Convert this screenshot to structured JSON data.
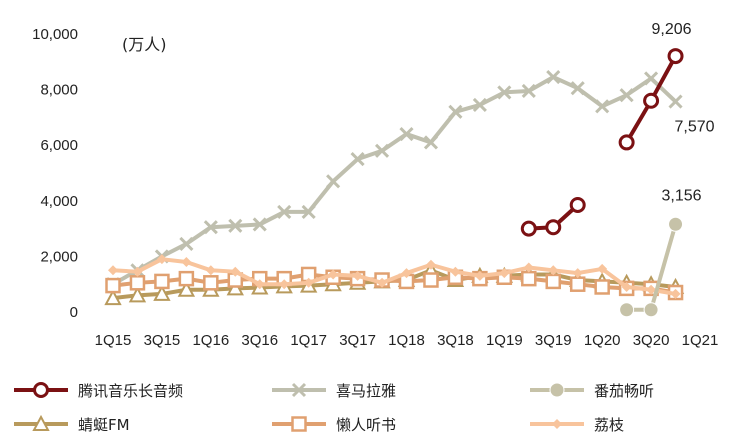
{
  "chart_data": {
    "type": "line",
    "title": "",
    "unit_label": "(万人)",
    "xlabel": "",
    "ylabel": "",
    "ylim": [
      0,
      10000
    ],
    "yticks": [
      "0",
      "2,000",
      "4,000",
      "6,000",
      "8,000",
      "10,000"
    ],
    "categories": [
      "1Q15",
      "2Q15",
      "3Q15",
      "4Q15",
      "1Q16",
      "2Q16",
      "3Q16",
      "4Q16",
      "1Q17",
      "2Q17",
      "3Q17",
      "4Q17",
      "1Q18",
      "2Q18",
      "3Q18",
      "4Q18",
      "1Q19",
      "2Q19",
      "3Q19",
      "4Q19",
      "1Q20",
      "2Q20",
      "3Q20",
      "4Q20",
      "1Q21"
    ],
    "xtick_labels": [
      "1Q15",
      "3Q15",
      "1Q16",
      "3Q16",
      "1Q17",
      "3Q17",
      "1Q18",
      "3Q18",
      "1Q19",
      "3Q19",
      "1Q20",
      "3Q20",
      "1Q21"
    ],
    "legend_position": "bottom",
    "grid": false,
    "series": [
      {
        "name": "腾讯音乐长音频",
        "color": "#7b1113",
        "marker": "circle",
        "values": [
          null,
          null,
          null,
          null,
          null,
          null,
          null,
          null,
          null,
          null,
          null,
          null,
          null,
          null,
          null,
          null,
          null,
          3000,
          3050,
          3850,
          null,
          6100,
          7600,
          9206,
          null
        ]
      },
      {
        "name": "喜马拉雅",
        "color": "#bfbfae",
        "marker": "x",
        "values": [
          1000,
          1500,
          2000,
          2450,
          3050,
          3100,
          3150,
          3600,
          3600,
          4700,
          5500,
          5800,
          6400,
          6100,
          7200,
          7450,
          7900,
          7950,
          8450,
          8050,
          7400,
          7800,
          8400,
          7570,
          null
        ]
      },
      {
        "name": "番茄畅听",
        "color": "#c6c2a8",
        "marker": "circle-filled",
        "values": [
          null,
          null,
          null,
          null,
          null,
          null,
          null,
          null,
          null,
          null,
          null,
          null,
          null,
          null,
          null,
          null,
          null,
          null,
          null,
          null,
          null,
          80,
          80,
          3156,
          null
        ]
      },
      {
        "name": "蜻蜓FM",
        "color": "#b89a5c",
        "marker": "triangle",
        "values": [
          500,
          600,
          650,
          800,
          800,
          850,
          880,
          920,
          950,
          1000,
          1050,
          1100,
          1150,
          1500,
          1150,
          1300,
          1300,
          1350,
          1350,
          1150,
          1100,
          1050,
          1000,
          900,
          null
        ]
      },
      {
        "name": "懒人听书",
        "color": "#e0a070",
        "marker": "square",
        "values": [
          950,
          1050,
          1100,
          1200,
          1050,
          1150,
          1200,
          1200,
          1350,
          1250,
          1200,
          1150,
          1100,
          1150,
          1250,
          1200,
          1250,
          1200,
          1100,
          1000,
          900,
          850,
          850,
          700,
          null
        ]
      },
      {
        "name": "荔枝",
        "color": "#f8c49c",
        "marker": "diamond",
        "values": [
          1500,
          1450,
          1900,
          1800,
          1500,
          1450,
          1000,
          1000,
          1050,
          1350,
          1300,
          1050,
          1400,
          1700,
          1450,
          1300,
          1400,
          1600,
          1500,
          1400,
          1550,
          900,
          800,
          650,
          null
        ]
      }
    ],
    "data_labels": [
      {
        "series": "腾讯音乐长音频",
        "text": "9,206"
      },
      {
        "series": "喜马拉雅",
        "text": "7,570"
      },
      {
        "series": "番茄畅听",
        "text": "3,156"
      }
    ]
  }
}
